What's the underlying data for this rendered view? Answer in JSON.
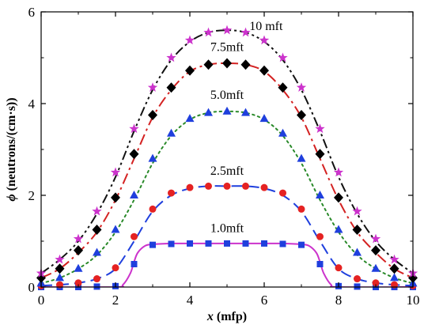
{
  "chart_data": {
    "type": "line",
    "xlabel_var": "x",
    "xlabel_unit": "(mfp)",
    "ylabel_var": "ϕ",
    "ylabel_unit": "(neutrons/(cm·s))",
    "xlim": [
      0,
      10
    ],
    "ylim": [
      0,
      6
    ],
    "xticks": [
      0,
      2,
      4,
      6,
      8,
      10
    ],
    "yticks": [
      0,
      2,
      4,
      6
    ],
    "grid": false,
    "legend": "none",
    "series": [
      {
        "name": "1.0mft",
        "color": "#cc33cc",
        "line_style": "solid",
        "marker": "square",
        "marker_color": "#1f3fdd",
        "line": {
          "x": [
            0,
            2.0,
            2.2,
            2.4,
            2.5,
            2.6,
            2.8,
            3.0,
            3.5,
            4.0,
            5.0,
            6.0,
            6.5,
            7.0,
            7.2,
            7.4,
            7.5,
            7.6,
            7.8,
            8.0,
            10
          ],
          "y": [
            0.0,
            0.0,
            0.05,
            0.3,
            0.55,
            0.75,
            0.9,
            0.93,
            0.95,
            0.95,
            0.95,
            0.95,
            0.95,
            0.93,
            0.9,
            0.75,
            0.55,
            0.3,
            0.05,
            0.0,
            0.0
          ]
        },
        "points": {
          "x": [
            0,
            0.5,
            1.0,
            1.5,
            2.0,
            2.5,
            3.0,
            3.5,
            4.0,
            4.5,
            5.0,
            5.5,
            6.0,
            6.5,
            7.0,
            7.5,
            8.0,
            8.5,
            9.0,
            9.5,
            10.0
          ],
          "y": [
            0.0,
            0.0,
            0.0,
            0.01,
            0.02,
            0.5,
            0.92,
            0.94,
            0.95,
            0.95,
            0.95,
            0.95,
            0.95,
            0.94,
            0.92,
            0.5,
            0.02,
            0.01,
            0.0,
            0.0,
            0.0
          ]
        }
      },
      {
        "name": "2.5mft",
        "color": "#1f3fdd",
        "line_style": "dashed",
        "marker": "circle",
        "marker_color": "#e52222",
        "line": {
          "x": [
            0,
            0.5,
            1.0,
            1.5,
            2.0,
            2.5,
            3.0,
            3.5,
            4.0,
            4.5,
            5.0,
            5.5,
            6.0,
            6.5,
            7.0,
            7.5,
            8.0,
            8.5,
            9.0,
            9.5,
            10.0
          ],
          "y": [
            0.03,
            0.05,
            0.09,
            0.18,
            0.4,
            1.0,
            1.65,
            2.0,
            2.15,
            2.2,
            2.2,
            2.2,
            2.15,
            2.0,
            1.65,
            1.0,
            0.4,
            0.18,
            0.09,
            0.05,
            0.03
          ]
        },
        "points": {
          "x": [
            0,
            0.5,
            1.0,
            1.5,
            2.0,
            2.5,
            3.0,
            3.5,
            4.0,
            4.5,
            5.0,
            5.5,
            6.0,
            6.5,
            7.0,
            7.5,
            8.0,
            8.5,
            9.0,
            9.5,
            10.0
          ],
          "y": [
            0.03,
            0.05,
            0.09,
            0.18,
            0.42,
            1.1,
            1.7,
            2.05,
            2.17,
            2.2,
            2.2,
            2.2,
            2.17,
            2.05,
            1.7,
            1.1,
            0.42,
            0.18,
            0.09,
            0.05,
            0.03
          ]
        }
      },
      {
        "name": "5.0mft",
        "color": "#2a8a2a",
        "line_style": "dotted",
        "marker": "triangle",
        "marker_color": "#1f3fdd",
        "line": {
          "x": [
            0,
            0.5,
            1.0,
            1.5,
            2.0,
            2.5,
            3.0,
            3.5,
            4.0,
            4.5,
            5.0,
            5.5,
            6.0,
            6.5,
            7.0,
            7.5,
            8.0,
            8.5,
            9.0,
            9.5,
            10.0
          ],
          "y": [
            0.08,
            0.2,
            0.4,
            0.7,
            1.2,
            1.9,
            2.7,
            3.3,
            3.65,
            3.8,
            3.83,
            3.8,
            3.65,
            3.3,
            2.7,
            1.9,
            1.2,
            0.7,
            0.4,
            0.2,
            0.08
          ]
        },
        "points": {
          "x": [
            0,
            0.5,
            1.0,
            1.5,
            2.0,
            2.5,
            3.0,
            3.5,
            4.0,
            4.5,
            5.0,
            5.5,
            6.0,
            6.5,
            7.0,
            7.5,
            8.0,
            8.5,
            9.0,
            9.5,
            10.0
          ],
          "y": [
            0.08,
            0.2,
            0.4,
            0.75,
            1.25,
            2.0,
            2.8,
            3.35,
            3.67,
            3.8,
            3.83,
            3.8,
            3.67,
            3.35,
            2.8,
            2.0,
            1.25,
            0.75,
            0.4,
            0.2,
            0.08
          ]
        }
      },
      {
        "name": "7.5mft",
        "color": "#d42222",
        "line_style": "dash-dot",
        "marker": "diamond",
        "marker_color": "#000000",
        "line": {
          "x": [
            0,
            0.5,
            1.0,
            1.5,
            2.0,
            2.5,
            3.0,
            3.5,
            4.0,
            4.5,
            5.0,
            5.5,
            6.0,
            6.5,
            7.0,
            7.5,
            8.0,
            8.5,
            9.0,
            9.5,
            10.0
          ],
          "y": [
            0.2,
            0.4,
            0.75,
            1.2,
            1.9,
            2.8,
            3.7,
            4.3,
            4.7,
            4.85,
            4.88,
            4.85,
            4.7,
            4.3,
            3.7,
            2.8,
            1.9,
            1.2,
            0.75,
            0.4,
            0.2
          ]
        },
        "points": {
          "x": [
            0,
            0.5,
            1.0,
            1.5,
            2.0,
            2.5,
            3.0,
            3.5,
            4.0,
            4.5,
            5.0,
            5.5,
            6.0,
            6.5,
            7.0,
            7.5,
            8.0,
            8.5,
            9.0,
            9.5,
            10.0
          ],
          "y": [
            0.2,
            0.4,
            0.8,
            1.25,
            1.95,
            2.9,
            3.75,
            4.35,
            4.72,
            4.85,
            4.88,
            4.85,
            4.72,
            4.35,
            3.75,
            2.9,
            1.95,
            1.25,
            0.8,
            0.4,
            0.2
          ]
        }
      },
      {
        "name": "10 mft",
        "color": "#111111",
        "line_style": "dash-dot-dot",
        "marker": "star",
        "marker_color": "#cc33cc",
        "line": {
          "x": [
            0,
            0.5,
            1.0,
            1.5,
            2.0,
            2.5,
            3.0,
            3.5,
            4.0,
            4.5,
            5.0,
            5.5,
            6.0,
            6.5,
            7.0,
            7.5,
            8.0,
            8.5,
            9.0,
            9.5,
            10.0
          ],
          "y": [
            0.3,
            0.6,
            1.0,
            1.6,
            2.4,
            3.4,
            4.3,
            4.95,
            5.35,
            5.55,
            5.6,
            5.55,
            5.35,
            4.95,
            4.3,
            3.4,
            2.4,
            1.6,
            1.0,
            0.6,
            0.3
          ]
        },
        "points": {
          "x": [
            0,
            0.5,
            1.0,
            1.5,
            2.0,
            2.5,
            3.0,
            3.5,
            4.0,
            4.5,
            5.0,
            5.5,
            6.0,
            6.5,
            7.0,
            7.5,
            8.0,
            8.5,
            9.0,
            9.5,
            10.0
          ],
          "y": [
            0.3,
            0.6,
            1.05,
            1.65,
            2.5,
            3.45,
            4.35,
            5.0,
            5.38,
            5.55,
            5.6,
            5.55,
            5.38,
            5.0,
            4.35,
            3.45,
            2.5,
            1.65,
            1.05,
            0.6,
            0.3
          ]
        }
      }
    ],
    "annotations": [
      {
        "text": "10 mft",
        "x": 5.6,
        "y": 5.6
      },
      {
        "text": "7.5mft",
        "x": 4.55,
        "y": 5.15
      },
      {
        "text": "5.0mft",
        "x": 4.55,
        "y": 4.1
      },
      {
        "text": "2.5mft",
        "x": 4.55,
        "y": 2.45
      },
      {
        "text": "1.0mft",
        "x": 4.55,
        "y": 1.2
      }
    ]
  }
}
